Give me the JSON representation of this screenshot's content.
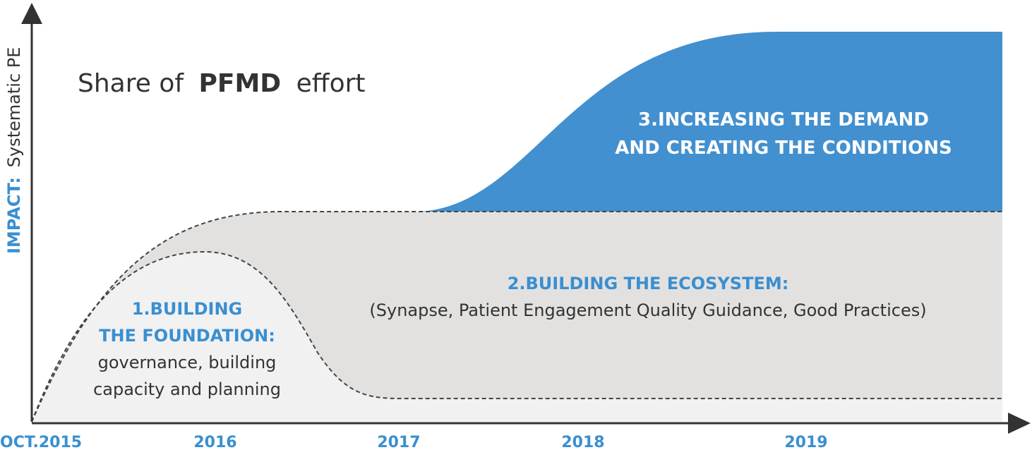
{
  "title": {
    "lead": "Share of",
    "bold": "PFMD",
    "tail": "effort"
  },
  "y_axis": {
    "bold": "IMPACT:",
    "rest": "Systematic PE"
  },
  "x_axis": {
    "labels": [
      "OCT.2015",
      "2016",
      "2017",
      "2018",
      "2019"
    ]
  },
  "areas": [
    {
      "heading": [
        "1.BUILDING",
        "THE FOUNDATION:"
      ],
      "body": [
        "governance, building",
        "capacity and planning"
      ]
    },
    {
      "heading": [
        "2.BUILDING THE ECOSYSTEM:"
      ],
      "body": [
        "(Synapse, Patient Engagement Quality Guidance, Good Practices)"
      ]
    },
    {
      "heading": [
        "3.INCREASING THE DEMAND",
        "AND CREATING THE CONDITIONS"
      ],
      "body": []
    }
  ]
}
